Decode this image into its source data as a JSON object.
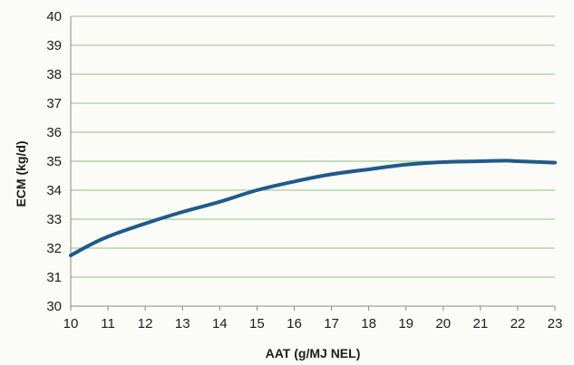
{
  "chart_data": {
    "type": "line",
    "title": "",
    "xlabel": "AAT (g/MJ NEL)",
    "ylabel": "ECM (kg/d)",
    "xlim": [
      10,
      23
    ],
    "ylim": [
      30,
      40
    ],
    "x_ticks": [
      "10",
      "11",
      "12",
      "13",
      "14",
      "15",
      "16",
      "17",
      "18",
      "19",
      "20",
      "21",
      "22",
      "23"
    ],
    "y_ticks": [
      "30",
      "31",
      "32",
      "33",
      "34",
      "35",
      "36",
      "37",
      "38",
      "39",
      "40"
    ],
    "grid": true,
    "grid_axis": "y",
    "grid_color": "#8cc47c",
    "series": [
      {
        "color": "#1f5a8a",
        "x": [
          10,
          10.5,
          11,
          12,
          13,
          14,
          15,
          16,
          17,
          18,
          19,
          20,
          21,
          21.7,
          22,
          23
        ],
        "y": [
          31.75,
          32.1,
          32.4,
          32.85,
          33.25,
          33.6,
          34.0,
          34.3,
          34.55,
          34.72,
          34.88,
          34.97,
          35.0,
          35.02,
          35.0,
          34.95
        ]
      }
    ]
  }
}
